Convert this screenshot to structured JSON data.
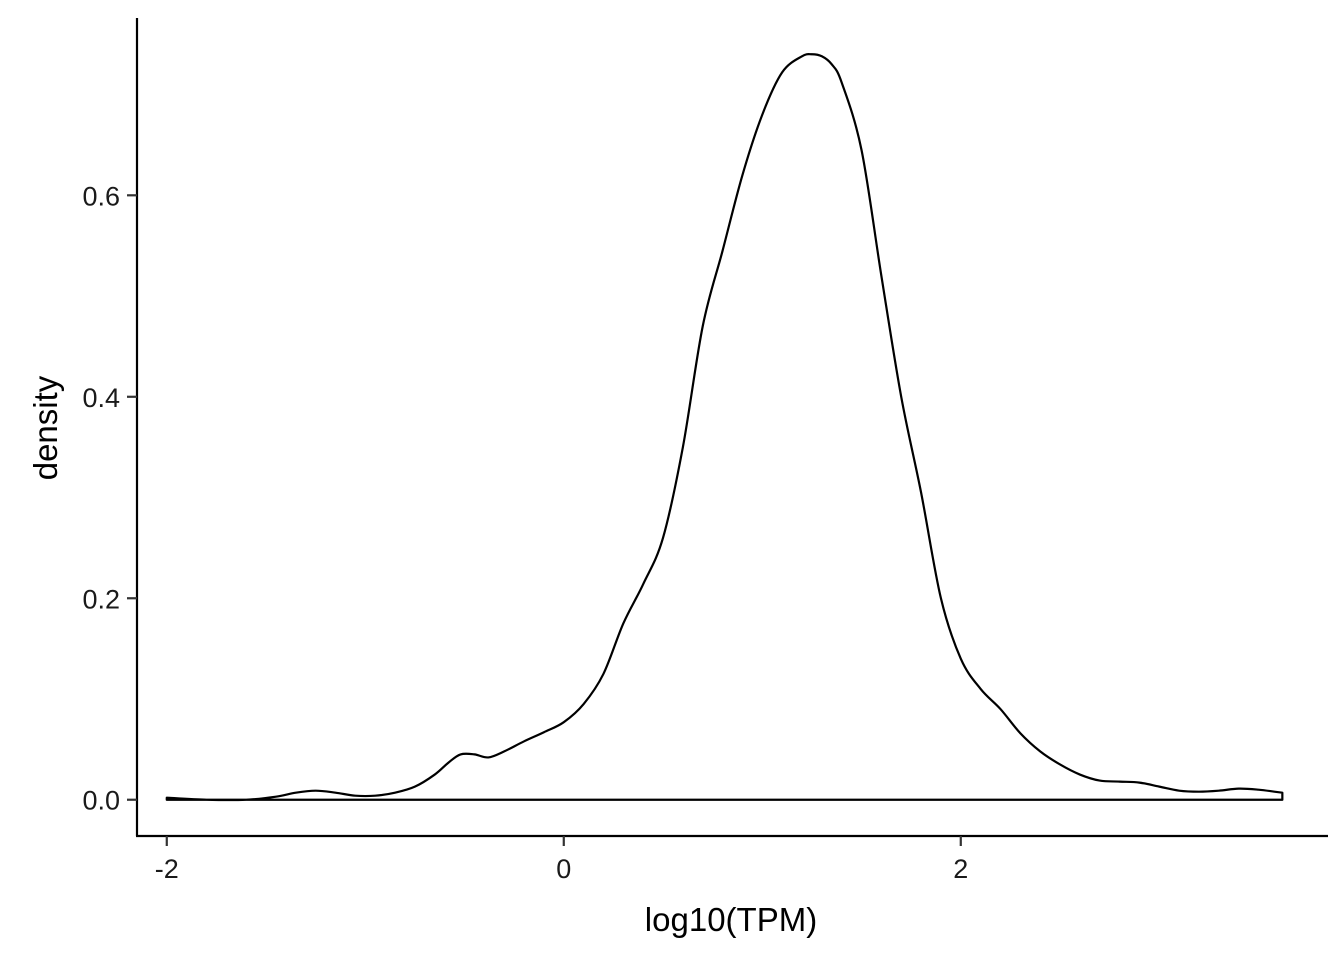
{
  "chart_data": {
    "type": "area",
    "title": "",
    "xlabel": "log10(TPM)",
    "ylabel": "density",
    "xlim": [
      -2.15,
      3.85
    ],
    "ylim": [
      -0.036,
      0.776
    ],
    "x_ticks": [
      {
        "value": -2,
        "label": "-2"
      },
      {
        "value": 0,
        "label": "0"
      },
      {
        "value": 2,
        "label": "2"
      }
    ],
    "y_ticks": [
      {
        "value": 0.0,
        "label": "0.0"
      },
      {
        "value": 0.2,
        "label": "0.2"
      },
      {
        "value": 0.4,
        "label": "0.4"
      },
      {
        "value": 0.6,
        "label": "0.6"
      }
    ],
    "grid": false,
    "legend": "none",
    "series": [
      {
        "x": [
          -2.0,
          -1.8,
          -1.6,
          -1.45,
          -1.35,
          -1.25,
          -1.15,
          -1.05,
          -0.95,
          -0.85,
          -0.75,
          -0.65,
          -0.58,
          -0.52,
          -0.45,
          -0.38,
          -0.3,
          -0.2,
          -0.1,
          0.0,
          0.1,
          0.2,
          0.3,
          0.4,
          0.5,
          0.6,
          0.7,
          0.8,
          0.9,
          1.0,
          1.1,
          1.2,
          1.25,
          1.3,
          1.35,
          1.4,
          1.5,
          1.6,
          1.7,
          1.8,
          1.9,
          2.0,
          2.1,
          2.2,
          2.3,
          2.4,
          2.5,
          2.6,
          2.7,
          2.8,
          2.9,
          3.0,
          3.1,
          3.2,
          3.3,
          3.4,
          3.5,
          3.58,
          3.62
        ],
        "y": [
          0.002,
          0.0,
          0.0,
          0.003,
          0.007,
          0.009,
          0.007,
          0.004,
          0.004,
          0.007,
          0.013,
          0.025,
          0.037,
          0.045,
          0.045,
          0.042,
          0.048,
          0.058,
          0.067,
          0.077,
          0.095,
          0.125,
          0.175,
          0.214,
          0.26,
          0.35,
          0.47,
          0.545,
          0.62,
          0.68,
          0.722,
          0.738,
          0.74,
          0.738,
          0.73,
          0.712,
          0.645,
          0.52,
          0.4,
          0.305,
          0.2,
          0.14,
          0.11,
          0.09,
          0.066,
          0.048,
          0.035,
          0.025,
          0.019,
          0.018,
          0.017,
          0.013,
          0.009,
          0.008,
          0.009,
          0.011,
          0.01,
          0.008,
          0.007
        ]
      }
    ]
  }
}
